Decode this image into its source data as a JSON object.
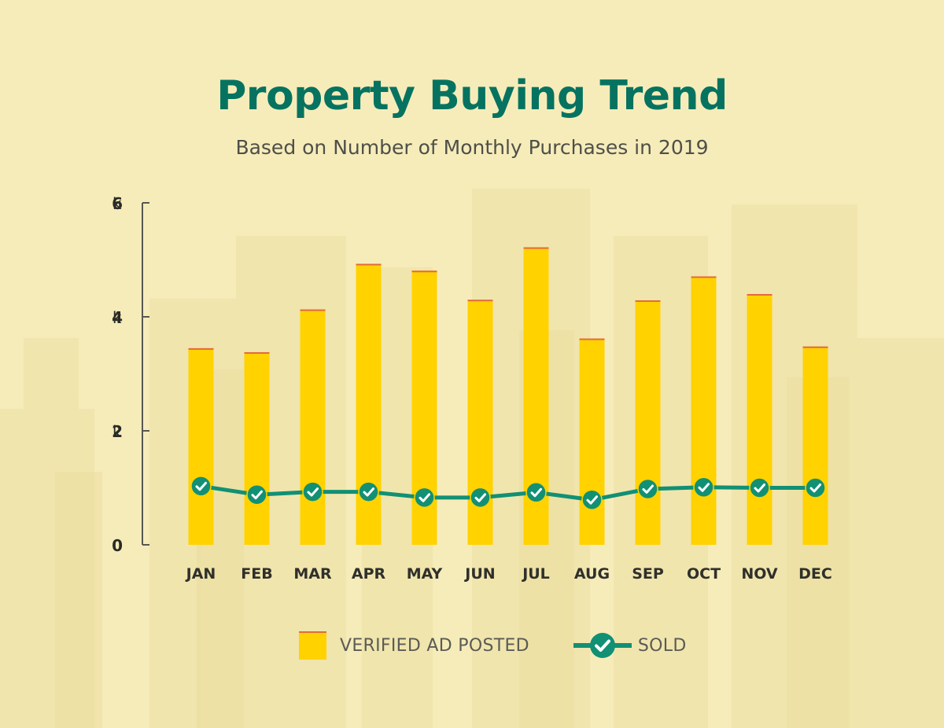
{
  "colors": {
    "background": "#f6ecba",
    "title": "#067360",
    "bar": "#ffd200",
    "bar_cap": "#e36a3a",
    "line": "#119074",
    "axis": "#575851"
  },
  "chart_data": {
    "type": "bar",
    "title": "Property Buying Trend",
    "subtitle": "Based on Number of Monthly Purchases in 2019",
    "categories": [
      "JAN",
      "FEB",
      "MAR",
      "APR",
      "MAY",
      "JUN",
      "JUL",
      "AUG",
      "SEP",
      "OCT",
      "NOV",
      "DEC"
    ],
    "series": [
      {
        "name": "VERIFIED AD POSTED",
        "type": "bar",
        "values": [
          3450,
          3380,
          4130,
          4930,
          4810,
          4300,
          5220,
          3620,
          4290,
          4710,
          4400,
          3480
        ]
      },
      {
        "name": "SOLD",
        "type": "line",
        "marker": "check-circle-icon",
        "values": [
          1030,
          880,
          930,
          930,
          830,
          830,
          920,
          790,
          980,
          1010,
          1000,
          1000
        ]
      }
    ],
    "ylim": [
      0,
      6000
    ],
    "y_ticks": [
      {
        "value": 0,
        "num": "0",
        "unit": ""
      },
      {
        "value": 2000,
        "num": "2",
        "unit": "k"
      },
      {
        "value": 4000,
        "num": "4",
        "unit": "k"
      },
      {
        "value": 6000,
        "num": "6",
        "unit": "k"
      }
    ],
    "xlabel": "",
    "ylabel": "",
    "grid": false,
    "legend_position": "bottom-center"
  }
}
